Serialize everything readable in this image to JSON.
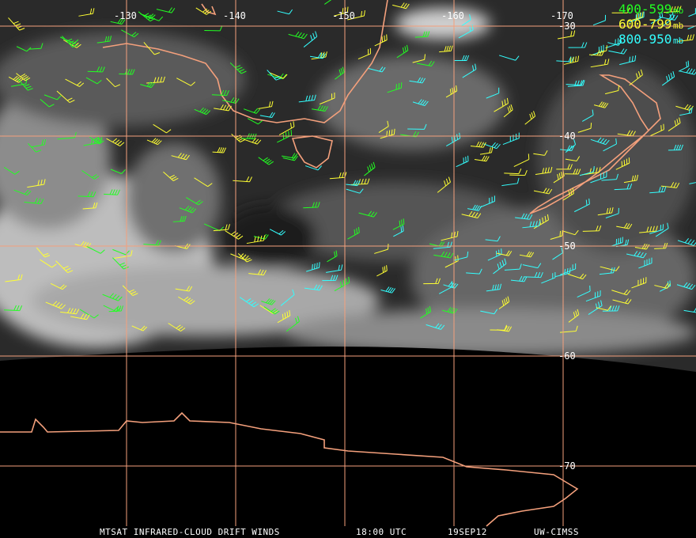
{
  "map": {
    "longitude_labels": [
      "-130",
      "-140",
      "-150",
      "-160",
      "-170"
    ],
    "latitude_labels": [
      "-30",
      "-40",
      "-50",
      "-60",
      "-70"
    ],
    "legend": [
      {
        "label": "400-599",
        "unit": "mb",
        "color": "#22ff22"
      },
      {
        "label": "600-799",
        "unit": "mb",
        "color": "#ffff33"
      },
      {
        "label": "800-950",
        "unit": "mb",
        "color": "#33ffff"
      }
    ],
    "footer": {
      "product": "MTSAT INFRARED-CLOUD DRIFT WINDS",
      "time": "18:00 UTC",
      "date": "19SEP12",
      "source": "UW-CIMSS"
    }
  }
}
